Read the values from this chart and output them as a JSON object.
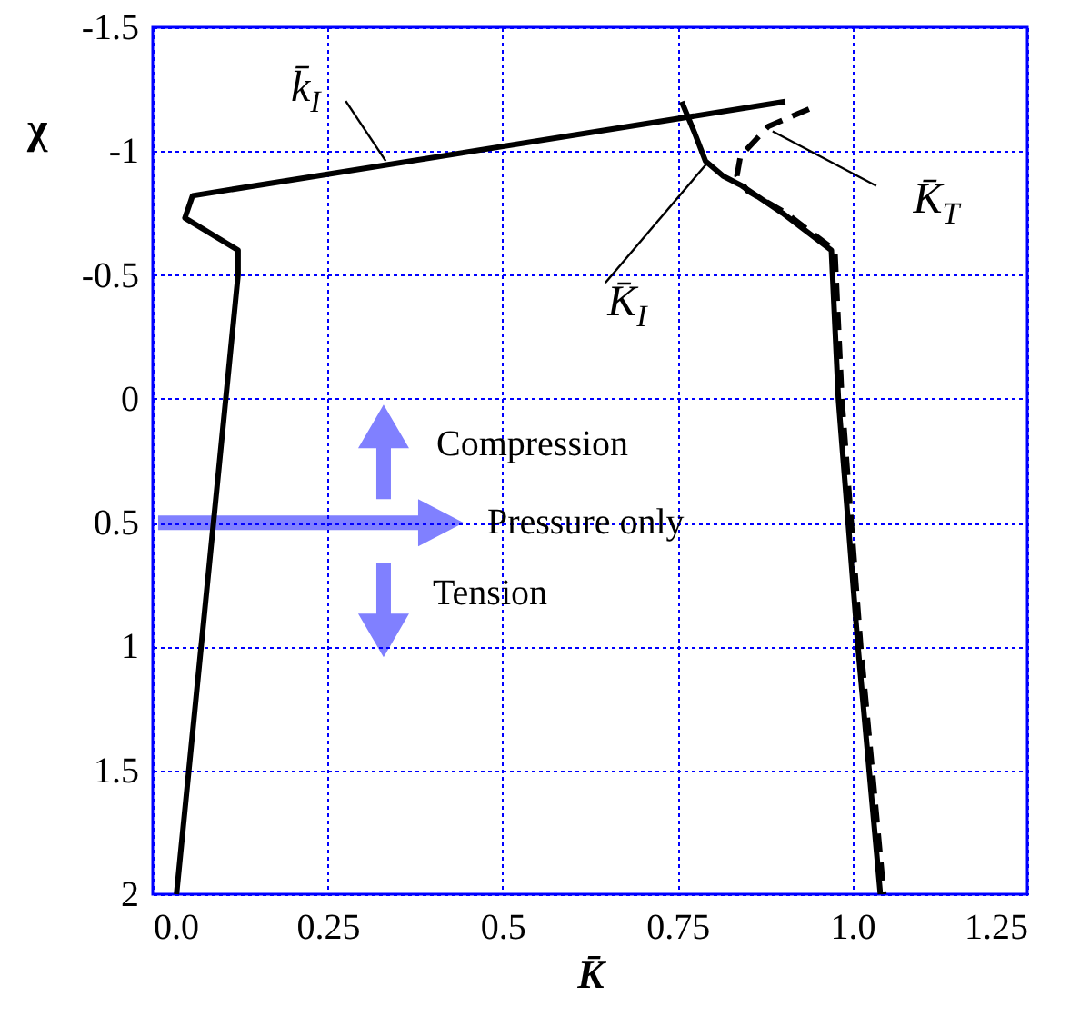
{
  "chart_data": {
    "type": "line",
    "xlabel": "K̄",
    "ylabel": "χ",
    "xlim": [
      0,
      1.25
    ],
    "xticks": [
      {
        "value": 0,
        "label": "0.0"
      },
      0.25,
      0.5,
      0.75,
      {
        "value": 1,
        "label": "1.0"
      },
      1.25
    ],
    "ylim": [
      2,
      -1.5
    ],
    "yticks": [
      -1.5,
      -1,
      -0.5,
      0,
      0.5,
      1,
      1.5,
      2
    ],
    "grid": true,
    "marker": "none",
    "series": [
      {
        "color": "#000000",
        "line_style": "solid",
        "x": [
          0.034,
          0.122,
          0.122,
          0.046,
          0.057,
          0.904
        ],
        "values": [
          2,
          -0.5,
          -0.6,
          -0.73,
          -0.82,
          -1.2
        ]
      },
      {
        "color": "#000000",
        "line_style": "solid",
        "x": [
          0.756,
          0.775,
          0.79,
          0.815,
          0.842,
          0.9,
          0.97,
          0.98,
          1.008,
          1.04
        ],
        "values": [
          -1.2,
          -1.07,
          -0.96,
          -0.9,
          -0.86,
          -0.75,
          -0.6,
          0,
          1,
          2
        ]
      },
      {
        "color": "#000000",
        "line_style": "dashed",
        "x": [
          0.938,
          0.88,
          0.84,
          0.835,
          0.85,
          0.905,
          0.975,
          0.985,
          1.012,
          1.045
        ],
        "values": [
          -1.17,
          -1.1,
          -0.98,
          -0.9,
          -0.84,
          -0.75,
          -0.6,
          0,
          1,
          2
        ]
      }
    ],
    "annotations": [
      {
        "text": "k̄$_{I}$",
        "x": 0.333,
        "y": -0.96
      },
      {
        "text": "K̄$_{I}$",
        "x": 0.795,
        "y": -0.96
      },
      {
        "text": "K̄$_{T}$",
        "x": 0.886,
        "y": -1.08
      },
      "Compression",
      "Pressure only",
      "Tension"
    ]
  }
}
